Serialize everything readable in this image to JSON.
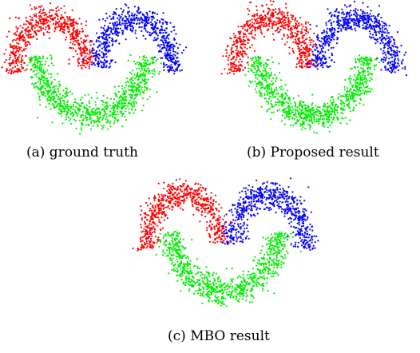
{
  "figure": {
    "panels": [
      {
        "caption": "(a) ground truth"
      },
      {
        "caption": "(b) Proposed result"
      },
      {
        "caption": "(c) MBO result"
      }
    ]
  },
  "chart_data": [
    {
      "type": "scatter",
      "title": "",
      "xlabel": "",
      "ylabel": "",
      "grid": false,
      "axes_visible": false,
      "series": [
        {
          "color": "#ff0000",
          "shape": "upper-left half-moon arc, centered (0,0), radius 1, noise 0.1"
        },
        {
          "color": "#00ee00",
          "shape": "lower half-moon arc, centered (1.1,0.2), radius 1.2, noise 0.1"
        },
        {
          "color": "#0000ff",
          "shape": "upper-right half-moon arc, centered (2.2,0), radius 1, noise 0.1"
        }
      ]
    },
    {
      "type": "scatter",
      "title": "",
      "xlabel": "",
      "ylabel": "",
      "grid": false,
      "axes_visible": false,
      "series": [
        {
          "color": "#ff0000",
          "shape": "upper-left half-moon arc"
        },
        {
          "color": "#00ee00",
          "shape": "lower half-moon arc"
        },
        {
          "color": "#0000ff",
          "shape": "upper-right half-moon arc"
        }
      ]
    },
    {
      "type": "scatter",
      "title": "",
      "xlabel": "",
      "ylabel": "",
      "grid": false,
      "axes_visible": false,
      "series": [
        {
          "color": "#ff0000",
          "shape": "upper-left half-moon arc"
        },
        {
          "color": "#00ee00",
          "shape": "lower half-moon arc"
        },
        {
          "color": "#0000ff",
          "shape": "upper-right half-moon arc"
        }
      ]
    }
  ]
}
